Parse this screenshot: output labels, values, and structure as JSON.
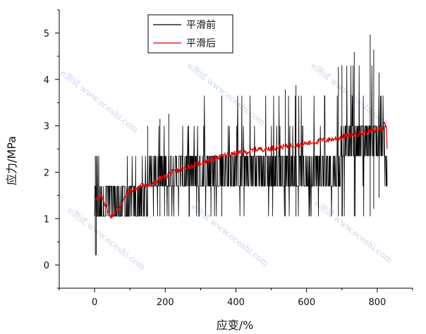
{
  "chart_data": {
    "type": "line",
    "xlabel": "应变/%",
    "ylabel": "应力/MPa",
    "xlim": [
      -100,
      900
    ],
    "ylim": [
      -0.5,
      5.5
    ],
    "x_ticks": [
      0,
      200,
      400,
      600,
      800
    ],
    "y_ticks": [
      0,
      1,
      2,
      3,
      4,
      5
    ],
    "grid": false,
    "legend_position": "top-left",
    "series": [
      {
        "name": "平滑前",
        "color": "#000000",
        "description_levels": [
          0.4,
          1.05,
          1.7,
          2.35,
          3.0,
          3.65,
          4.3,
          4.97
        ],
        "x_range": [
          0,
          828
        ],
        "envelope": [
          {
            "x": 0,
            "low": 0.2,
            "high": 2.35
          },
          {
            "x": 80,
            "low": 0.4,
            "high": 2.35
          },
          {
            "x": 150,
            "low": 1.05,
            "high": 3.0
          },
          {
            "x": 300,
            "low": 1.05,
            "high": 3.65
          },
          {
            "x": 500,
            "low": 1.05,
            "high": 3.65
          },
          {
            "x": 700,
            "low": 1.05,
            "high": 4.3
          },
          {
            "x": 780,
            "low": 1.05,
            "high": 4.97
          },
          {
            "x": 820,
            "low": 1.7,
            "high": 3.65
          },
          {
            "x": 828,
            "low": 0.4,
            "high": 3.3
          }
        ]
      },
      {
        "name": "平滑后",
        "color": "#e00000",
        "points": [
          [
            0,
            1.45
          ],
          [
            10,
            1.4
          ],
          [
            20,
            1.5
          ],
          [
            30,
            1.3
          ],
          [
            40,
            1.1
          ],
          [
            50,
            1.05
          ],
          [
            60,
            1.15
          ],
          [
            70,
            1.25
          ],
          [
            80,
            1.35
          ],
          [
            90,
            1.55
          ],
          [
            100,
            1.6
          ],
          [
            120,
            1.65
          ],
          [
            140,
            1.75
          ],
          [
            160,
            1.7
          ],
          [
            180,
            1.85
          ],
          [
            200,
            1.9
          ],
          [
            220,
            2.0
          ],
          [
            240,
            2.05
          ],
          [
            260,
            2.1
          ],
          [
            280,
            2.15
          ],
          [
            300,
            2.2
          ],
          [
            320,
            2.25
          ],
          [
            340,
            2.3
          ],
          [
            360,
            2.35
          ],
          [
            380,
            2.38
          ],
          [
            400,
            2.4
          ],
          [
            420,
            2.42
          ],
          [
            440,
            2.45
          ],
          [
            460,
            2.5
          ],
          [
            480,
            2.5
          ],
          [
            500,
            2.52
          ],
          [
            520,
            2.55
          ],
          [
            540,
            2.55
          ],
          [
            560,
            2.58
          ],
          [
            580,
            2.6
          ],
          [
            600,
            2.62
          ],
          [
            620,
            2.65
          ],
          [
            640,
            2.68
          ],
          [
            660,
            2.7
          ],
          [
            680,
            2.72
          ],
          [
            700,
            2.75
          ],
          [
            720,
            2.8
          ],
          [
            740,
            2.82
          ],
          [
            760,
            2.85
          ],
          [
            780,
            2.88
          ],
          [
            800,
            2.92
          ],
          [
            815,
            2.95
          ],
          [
            820,
            3.05
          ],
          [
            825,
            3.0
          ],
          [
            828,
            2.5
          ]
        ]
      }
    ]
  }
}
